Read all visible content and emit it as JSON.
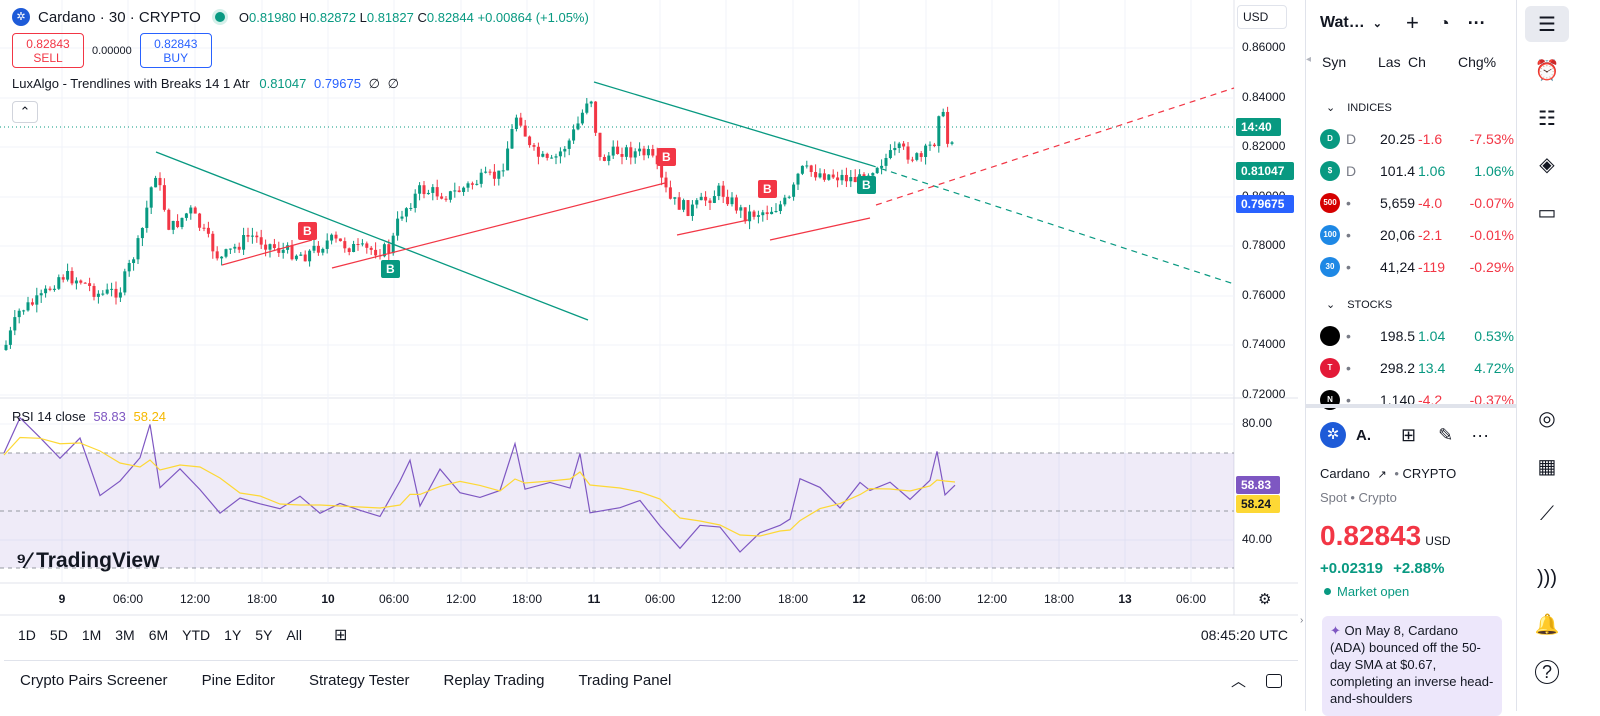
{
  "header": {
    "symbol_title": "Cardano · 30 · CRYPTO",
    "o_label": "O",
    "o_value": "0.81980",
    "h_label": "H",
    "h_value": "0.82872",
    "l_label": "L",
    "l_value": "0.81827",
    "c_label": "C",
    "c_value": "0.82844",
    "change": "+0.00864 (+1.05%)",
    "sell_price": "0.82843",
    "sell_label": "SELL",
    "spread": "0.00000",
    "buy_price": "0.82843",
    "buy_label": "BUY",
    "currency": "USD"
  },
  "indicators": {
    "luxalgo_name": "LuxAlgo - Trendlines with Breaks 14 1 Atr",
    "luxalgo_v1": "0.81047",
    "luxalgo_v2": "0.79675",
    "luxalgo_v3": "∅",
    "luxalgo_v4": "∅",
    "collapse_glyph": "⌃",
    "rsi_name": "RSI 14 close",
    "rsi_value": "58.83",
    "rsi_ma": "58.24"
  },
  "price_axis": {
    "labels": [
      "0.86000",
      "0.84000",
      "0.82000",
      "0.80000",
      "0.78000",
      "0.76000",
      "0.74000",
      "0.72000"
    ],
    "countdown_tag": "14:40",
    "tag_upper": "0.81047",
    "tag_lower": "0.79675",
    "rsi_labels": [
      "80.00",
      "40.00"
    ],
    "rsi_tag": "58.83",
    "rsi_ma_tag": "58.24"
  },
  "time_axis": {
    "labels": [
      "9",
      "06:00",
      "12:00",
      "18:00",
      "10",
      "06:00",
      "12:00",
      "18:00",
      "11",
      "06:00",
      "12:00",
      "18:00",
      "12",
      "06:00",
      "12:00",
      "18:00",
      "13",
      "06:00"
    ]
  },
  "watermark": "TradingView",
  "signals": {
    "break_up": "B",
    "break_down": "B"
  },
  "bottom_toolbar": {
    "ranges": [
      "1D",
      "5D",
      "1M",
      "3M",
      "6M",
      "YTD",
      "1Y",
      "5Y",
      "All"
    ],
    "clock": "08:45:20 UTC"
  },
  "panel_tabs": [
    "Crypto Pairs Screener",
    "Pine Editor",
    "Strategy Tester",
    "Replay Trading",
    "Trading Panel"
  ],
  "watchlist": {
    "title": "Wat…",
    "col_symbol": "Syn",
    "col_last": "Las",
    "col_chg": "Ch",
    "col_chgpct": "Chg%",
    "indices_title": "INDICES",
    "stocks_title": "STOCKS",
    "indices": [
      {
        "icon": "D",
        "color": "#089981",
        "sym": "D",
        "last": "20.25",
        "chg": "-1.6",
        "pct": "-7.53%",
        "chg_color": "#f23645"
      },
      {
        "icon": "$",
        "color": "#089981",
        "sym": "D",
        "last": "101.4",
        "chg": "1.06",
        "pct": "1.06%",
        "chg_color": "#089981"
      },
      {
        "icon": "500",
        "color": "#d50000",
        "sym": "•",
        "last": "5,659",
        "chg": "-4.0",
        "pct": "-0.07%",
        "chg_color": "#f23645"
      },
      {
        "icon": "100",
        "color": "#1e88e5",
        "sym": "•",
        "last": "20,06",
        "chg": "-2.1",
        "pct": "-0.01%",
        "chg_color": "#f23645"
      },
      {
        "icon": "30",
        "color": "#1e88e5",
        "sym": "•",
        "last": "41,24",
        "chg": "-119",
        "pct": "-0.29%",
        "chg_color": "#f23645"
      }
    ],
    "stocks": [
      {
        "icon": "",
        "color": "#000000",
        "sym": "•",
        "last": "198.5",
        "chg": "1.04",
        "pct": "0.53%",
        "chg_color": "#089981"
      },
      {
        "icon": "T",
        "color": "#e31937",
        "sym": "•",
        "last": "298.2",
        "chg": "13.4",
        "pct": "4.72%",
        "chg_color": "#089981"
      },
      {
        "icon": "N",
        "color": "#000000",
        "sym": "•",
        "last": "1,140",
        "chg": "-4.2",
        "pct": "-0.37%",
        "chg_color": "#f23645"
      }
    ]
  },
  "details": {
    "short_name": "A.",
    "name": "Cardano",
    "exchange": "CRYPTO",
    "type_line": "Spot • Crypto",
    "price": "0.82843",
    "currency": "USD",
    "change": "+0.02319",
    "change_pct": "+2.88%",
    "market_status": "Market open",
    "news": "On May 8, Cardano (ADA) bounced off the 50-day SMA at $0.67, completing an inverse head-and-shoulders"
  },
  "colors": {
    "up": "#089981",
    "down": "#f23645",
    "accent": "#2962ff",
    "rsi": "#7e57c2",
    "rsi_ma": "#fdd835"
  }
}
